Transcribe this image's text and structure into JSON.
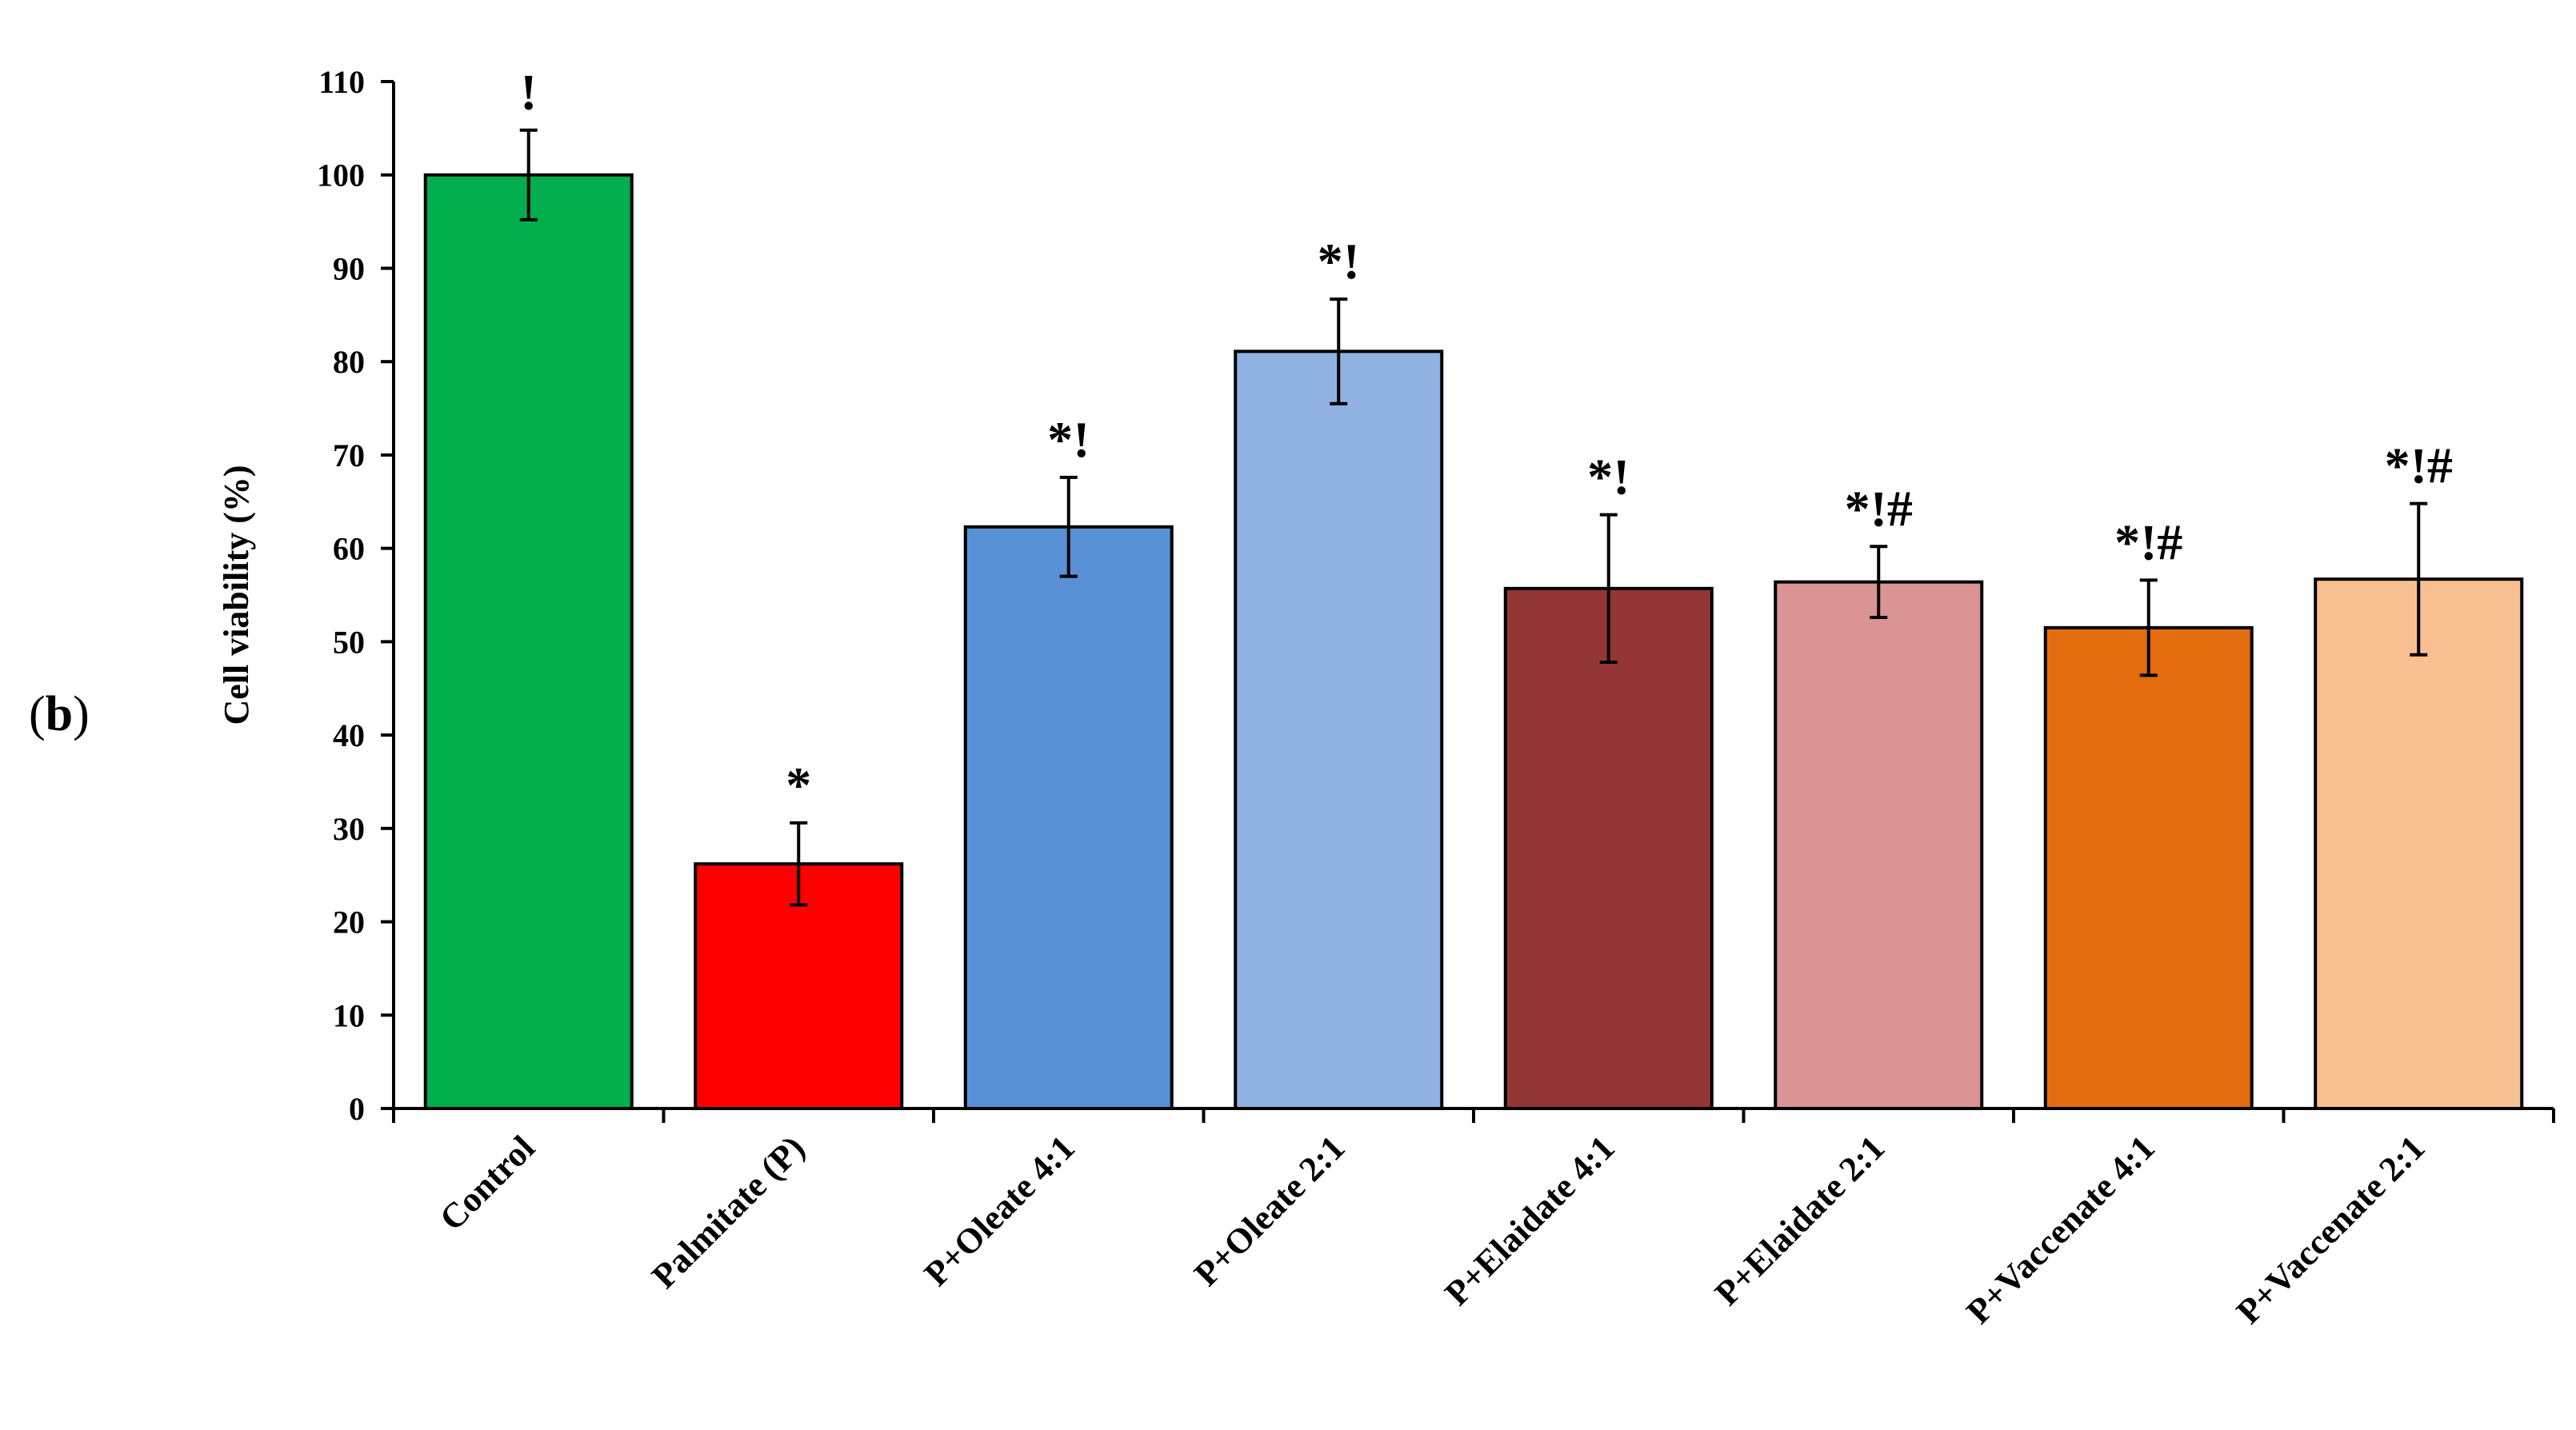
{
  "panel": {
    "open": "(",
    "letter": "b",
    "close": ")"
  },
  "chart_data": {
    "type": "bar",
    "title": "",
    "xlabel": "",
    "ylabel": "Cell viability  (%)",
    "ylim": [
      0,
      110
    ],
    "yticks": [
      0,
      10,
      20,
      30,
      40,
      50,
      60,
      70,
      80,
      90,
      100,
      110
    ],
    "grid": false,
    "legend": "none",
    "categories": [
      "Control",
      "Palmitate (P)",
      "P+Oleate 4:1",
      "P+Oleate 2:1",
      "P+Elaidate 4:1",
      "P+Elaidate 2:1",
      "P+Vaccenate 4:1",
      "P+Vaccenate 2:1"
    ],
    "values": [
      100,
      26.2,
      62.3,
      81.1,
      55.7,
      56.4,
      51.5,
      56.7
    ],
    "errors": [
      4.8,
      4.4,
      5.3,
      5.6,
      7.9,
      3.8,
      5.1,
      8.1
    ],
    "significance": [
      "!",
      "*",
      "*!",
      "*!",
      "*!",
      "*!#",
      "*!#",
      "*!#"
    ],
    "colors": [
      "#00ae4d",
      "#ff0000",
      "#5790d5",
      "#8fb2e2",
      "#943636",
      "#da9494",
      "#e36c0e",
      "#f8c091"
    ]
  }
}
